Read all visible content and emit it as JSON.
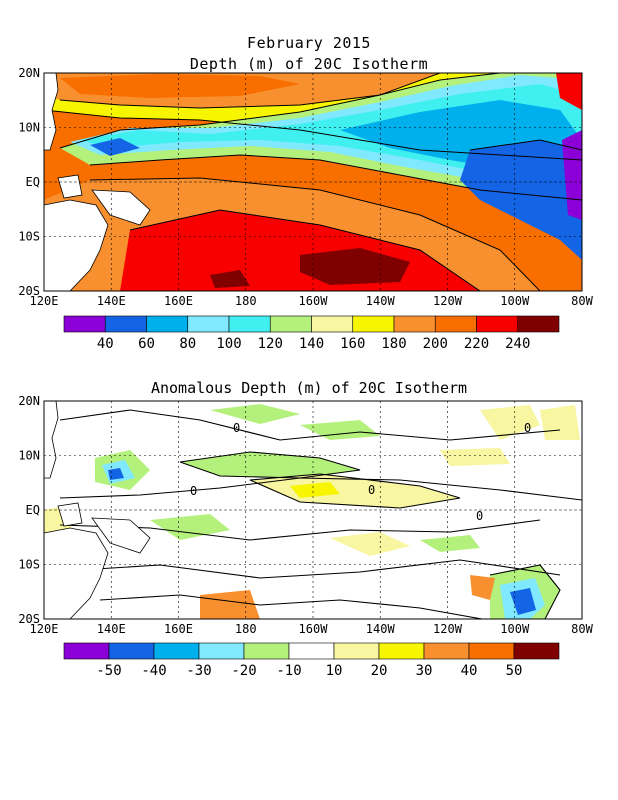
{
  "header": {
    "title": "February 2015",
    "subtitle": "Depth (m) of 20C Isotherm"
  },
  "top_panel": {
    "lat_labels": [
      "20N",
      "10N",
      "EQ",
      "10S",
      "20S"
    ],
    "lon_labels": [
      "120E",
      "140E",
      "160E",
      "180",
      "160W",
      "140W",
      "120W",
      "100W",
      "80W"
    ],
    "colorbar": {
      "colors": [
        "#8a00d6",
        "#1464e6",
        "#00b0ec",
        "#80e8ff",
        "#40f0f0",
        "#b4f07c",
        "#f8f6a0",
        "#f8f500",
        "#f89030",
        "#f86f00",
        "#f80000",
        "#800000"
      ],
      "labels": [
        "40",
        "60",
        "80",
        "100",
        "120",
        "140",
        "160",
        "180",
        "200",
        "220",
        "240"
      ]
    }
  },
  "bottom_panel": {
    "title": "Anomalous Depth (m) of 20C Isotherm",
    "lat_labels": [
      "20N",
      "10N",
      "EQ",
      "10S",
      "20S"
    ],
    "lon_labels": [
      "120E",
      "140E",
      "160E",
      "180",
      "160W",
      "140W",
      "120W",
      "100W",
      "80W"
    ],
    "contour_label": "0",
    "colorbar": {
      "colors": [
        "#8a00d6",
        "#1464e6",
        "#00b0ec",
        "#80e8ff",
        "#b4f07c",
        "#ffffff",
        "#f8f6a0",
        "#f8f500",
        "#f89030",
        "#f86f00",
        "#800000"
      ],
      "labels": [
        "-50",
        "-40",
        "-30",
        "-20",
        "-10",
        "10",
        "20",
        "30",
        "40",
        "50"
      ]
    }
  }
}
